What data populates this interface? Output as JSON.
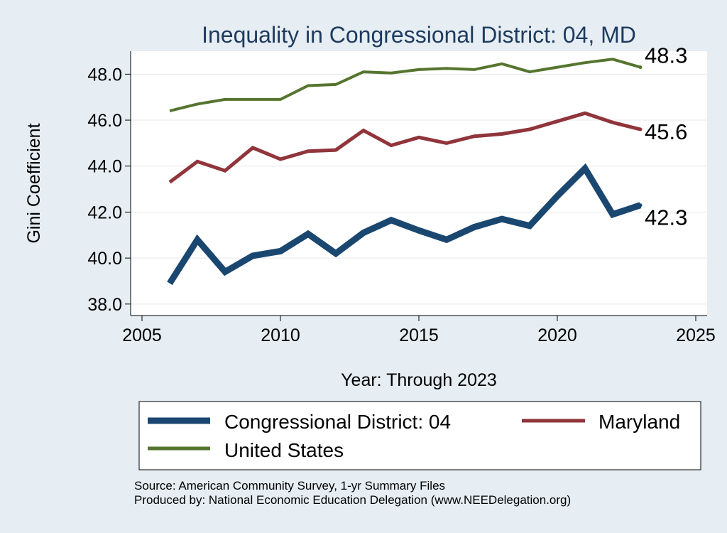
{
  "chart_data": {
    "type": "line",
    "title": "Inequality in Congressional District:  04, MD",
    "xlabel": "Year: Through 2023",
    "ylabel": "Gini Coefficient",
    "xlim": [
      2005,
      2025
    ],
    "ylim": [
      37.5,
      49.0
    ],
    "xticks": [
      2005,
      2010,
      2015,
      2020,
      2025
    ],
    "yticks": [
      38.0,
      40.0,
      42.0,
      44.0,
      46.0,
      48.0
    ],
    "x": [
      2006,
      2007,
      2008,
      2009,
      2010,
      2011,
      2012,
      2013,
      2014,
      2015,
      2016,
      2017,
      2018,
      2019,
      2020,
      2021,
      2022,
      2023
    ],
    "series": [
      {
        "name": "Congressional District:  04",
        "color": "#1a476f",
        "values": [
          38.9,
          40.8,
          39.4,
          40.1,
          40.3,
          41.05,
          40.2,
          41.1,
          41.65,
          41.2,
          40.8,
          41.35,
          41.7,
          41.4,
          42.7,
          43.9,
          41.9,
          42.3
        ],
        "end_label": "42.3"
      },
      {
        "name": "Maryland",
        "color": "#90353b",
        "values": [
          43.3,
          44.2,
          43.8,
          44.8,
          44.3,
          44.65,
          44.7,
          45.55,
          44.9,
          45.25,
          45.0,
          45.3,
          45.4,
          45.6,
          45.95,
          46.3,
          45.9,
          45.6
        ],
        "end_label": "45.6"
      },
      {
        "name": "United States",
        "color": "#55752f",
        "values": [
          46.4,
          46.7,
          46.9,
          46.9,
          46.9,
          47.5,
          47.55,
          48.1,
          48.05,
          48.2,
          48.25,
          48.2,
          48.45,
          48.1,
          48.3,
          48.5,
          48.65,
          48.3
        ],
        "end_label": "48.3"
      }
    ],
    "legend_position": "bottom"
  },
  "footer": {
    "source": "Source: American Community Survey, 1-yr Summary Files",
    "producer": "Produced by: National Economic Education Delegation (www.NEEDelegation.org)"
  }
}
